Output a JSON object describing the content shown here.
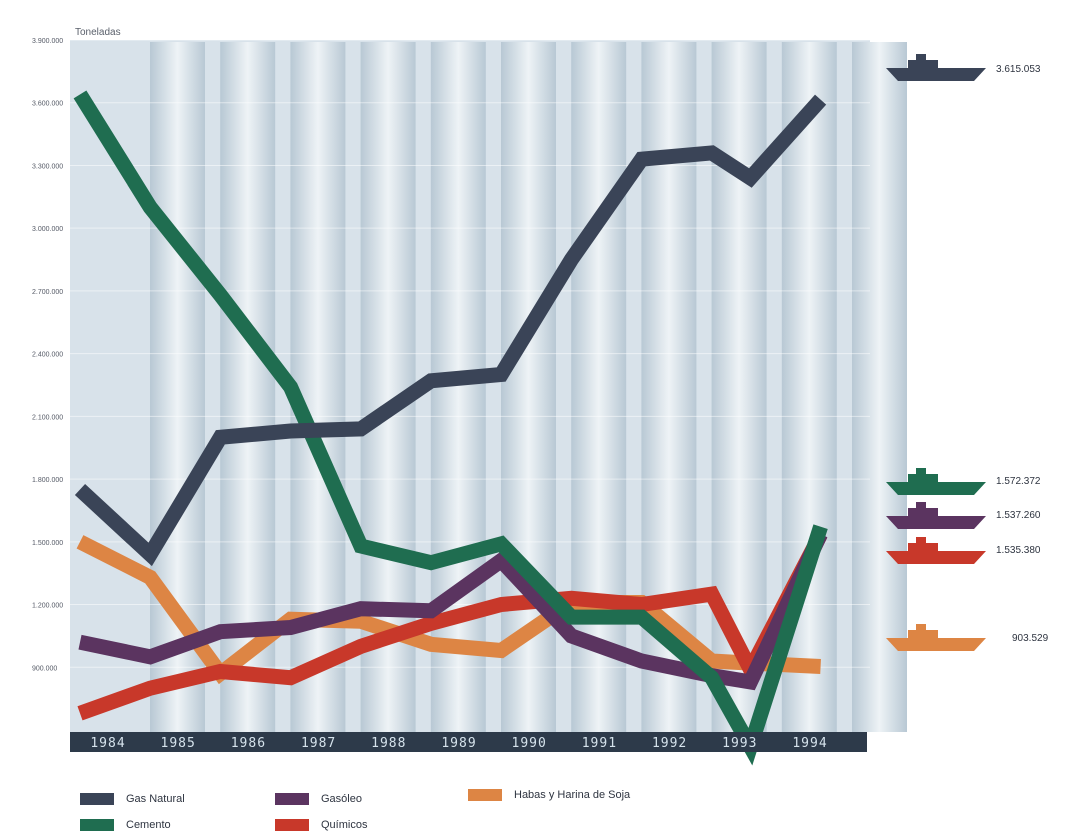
{
  "colors": {
    "Gas Natural": "#3a4457",
    "Cemento": "#1f6d50",
    "Gasóleo": "#5b3460",
    "Químicos": "#c8382a",
    "Habas y Harina de Soja": "#dd8544"
  },
  "icons": {
    "end_marker": "ship-icon"
  },
  "chart_data": {
    "type": "line",
    "ylabel": "Toneladas",
    "categories": [
      "1984",
      "1985",
      "1986",
      "1987",
      "1988",
      "1989",
      "1990",
      "1991",
      "1992",
      "1993",
      "1994"
    ],
    "ylim": [
      600000,
      3900000
    ],
    "yticks": [
      "3.900.000",
      "3.600.000",
      "3.300.000",
      "3.000.000",
      "2.700.000",
      "2.400.000",
      "2.100.000",
      "1.800.000",
      "1.500.000",
      "1.200.000",
      "900.000"
    ],
    "grid": false,
    "legend": "bottom",
    "series": [
      {
        "name": "Gas Natural",
        "values": [
          1750000,
          1440000,
          2000000,
          2030000,
          2040000,
          2270000,
          2300000,
          2850000,
          3330000,
          3360000,
          3240000,
          3615053
        ],
        "x": [
          1984,
          1985,
          1986,
          1987,
          1988,
          1989,
          1990,
          1991,
          1992,
          1993,
          1993.55,
          1994.55
        ],
        "end_label": "3.615.053"
      },
      {
        "name": "Cemento",
        "values": [
          3640000,
          3100000,
          2680000,
          2240000,
          1480000,
          1400000,
          1490000,
          1140000,
          1140000,
          850000,
          520000,
          1572372
        ],
        "x": [
          1984,
          1985,
          1986,
          1987,
          1988,
          1989,
          1990,
          1991,
          1992,
          1993,
          1993.55,
          1994.55
        ],
        "end_label": "1.572.372"
      },
      {
        "name": "Gasóleo",
        "values": [
          1020000,
          950000,
          1070000,
          1090000,
          1180000,
          1170000,
          1410000,
          1050000,
          930000,
          860000,
          830000,
          1537260
        ],
        "x": [
          1984,
          1985,
          1986,
          1987,
          1988,
          1989,
          1990,
          1991,
          1992,
          1993,
          1993.55,
          1994.55
        ],
        "end_label": "1.537.260"
      },
      {
        "name": "Químicos",
        "values": [
          680000,
          800000,
          880000,
          850000,
          1000000,
          1110000,
          1200000,
          1230000,
          1200000,
          1250000,
          890000,
          1535380
        ],
        "x": [
          1984,
          1985,
          1986,
          1987,
          1988,
          1989,
          1990,
          1991,
          1992,
          1993,
          1993.55,
          1994.55
        ],
        "end_label": "1.535.380"
      },
      {
        "name": "Habas y Harina de Soja",
        "values": [
          1500000,
          1330000,
          870000,
          1130000,
          1120000,
          1010000,
          980000,
          1210000,
          1210000,
          930000,
          920000,
          903529
        ],
        "x": [
          1984,
          1985,
          1986,
          1987,
          1988,
          1989,
          1990,
          1991,
          1992,
          1993,
          1993.55,
          1994.55
        ],
        "end_label": "903.529"
      }
    ]
  }
}
